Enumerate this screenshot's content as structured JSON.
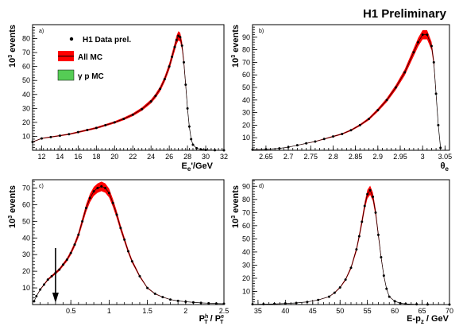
{
  "header": {
    "title": "H1 Preliminary"
  },
  "legend": {
    "data": "H1 Data prel.",
    "allmc": "All MC",
    "gpmc": "γ p MC",
    "colors": {
      "allmc": "#ff0000",
      "gpmc": "#55cc55",
      "data": "#000000"
    }
  },
  "chart_data": [
    {
      "type": "line",
      "panel": "a)",
      "xlabel": "E_e'/GeV",
      "ylabel": "10^3 events",
      "xlim": [
        11,
        32
      ],
      "ylim": [
        0,
        90
      ],
      "xticks": [
        12,
        14,
        16,
        18,
        20,
        22,
        24,
        26,
        28,
        30,
        32
      ],
      "yticks": [
        10,
        20,
        30,
        40,
        50,
        60,
        70,
        80
      ],
      "x": [
        11,
        12,
        13,
        14,
        15,
        16,
        17,
        18,
        19,
        20,
        21,
        22,
        23,
        24,
        24.5,
        25,
        25.5,
        26,
        26.3,
        26.6,
        26.8,
        27,
        27.2,
        27.4,
        27.6,
        27.8,
        28,
        28.2,
        28.4,
        28.6,
        29,
        29.5,
        30,
        31,
        32
      ],
      "y": [
        6,
        8.5,
        9.5,
        10.5,
        11.5,
        13,
        14.5,
        16,
        18,
        20,
        22.5,
        25.5,
        29.5,
        35,
        39,
        44,
        51,
        60,
        67,
        74,
        79,
        82,
        81,
        75,
        63,
        47,
        30,
        17,
        8,
        4,
        1.5,
        0.6,
        0.3,
        0.1,
        0
      ]
    },
    {
      "type": "line",
      "panel": "b)",
      "xlabel": "θ_e",
      "ylabel": "10^3 events",
      "xlim": [
        2.62,
        3.06
      ],
      "ylim": [
        0,
        100
      ],
      "xticks": [
        2.65,
        2.7,
        2.75,
        2.8,
        2.85,
        2.9,
        2.95,
        3.0,
        3.05
      ],
      "xticklabels": [
        "2.65",
        "2.7",
        "2.75",
        "2.8",
        "2.85",
        "2.9",
        "2.95",
        "3",
        "3.05"
      ],
      "yticks": [
        10,
        20,
        30,
        40,
        50,
        60,
        70,
        80,
        90
      ],
      "x": [
        2.62,
        2.65,
        2.68,
        2.7,
        2.72,
        2.74,
        2.76,
        2.78,
        2.8,
        2.82,
        2.84,
        2.86,
        2.88,
        2.9,
        2.92,
        2.94,
        2.96,
        2.98,
        2.99,
        3.0,
        3.01,
        3.02,
        3.025,
        3.03,
        3.035,
        3.04
      ],
      "y": [
        0.5,
        0.8,
        1.5,
        2.5,
        4,
        5.5,
        7,
        9,
        11,
        13,
        16,
        20,
        25,
        32,
        40,
        50,
        62,
        78,
        86,
        92,
        92,
        83,
        70,
        45,
        20,
        2
      ]
    },
    {
      "type": "line",
      "panel": "c)",
      "xlabel": "P_T^h / P_T^e",
      "ylabel": "10^3 events",
      "xlim": [
        0,
        2.5
      ],
      "ylim": [
        0,
        75
      ],
      "xticks": [
        0.5,
        1,
        1.5,
        2,
        2.5
      ],
      "xticklabels": [
        "0.5",
        "1",
        "1.5",
        "2",
        "2.5"
      ],
      "yticks": [
        10,
        20,
        30,
        40,
        50,
        60,
        70
      ],
      "x": [
        0.02,
        0.05,
        0.1,
        0.15,
        0.2,
        0.25,
        0.3,
        0.35,
        0.4,
        0.45,
        0.5,
        0.55,
        0.6,
        0.65,
        0.7,
        0.75,
        0.8,
        0.85,
        0.9,
        0.95,
        1.0,
        1.05,
        1.1,
        1.15,
        1.2,
        1.25,
        1.3,
        1.4,
        1.5,
        1.6,
        1.7,
        1.8,
        1.9,
        2.0,
        2.1,
        2.2,
        2.3,
        2.4,
        2.5
      ],
      "y": [
        2,
        5,
        9,
        12,
        15,
        17,
        19,
        21,
        24,
        27,
        31,
        36,
        42,
        50,
        58,
        64,
        68,
        70,
        71,
        70,
        67,
        61,
        54,
        46,
        39,
        32,
        26,
        17,
        10,
        6.5,
        4.5,
        3,
        2.2,
        1.7,
        1.3,
        1,
        0.8,
        0.6,
        0.5
      ],
      "arrow_x": 0.3
    },
    {
      "type": "line",
      "panel": "d)",
      "xlabel": "E-p_z / GeV",
      "ylabel": "10^3 events",
      "xlim": [
        34,
        70
      ],
      "ylim": [
        0,
        95
      ],
      "xticks": [
        35,
        40,
        45,
        50,
        55,
        60,
        65,
        70
      ],
      "yticks": [
        10,
        20,
        30,
        40,
        50,
        60,
        70,
        80,
        90
      ],
      "x": [
        34,
        36,
        38,
        40,
        42,
        44,
        46,
        48,
        49,
        50,
        51,
        52,
        53,
        53.5,
        54,
        54.5,
        55,
        55.5,
        56,
        56.5,
        57,
        57.5,
        58,
        58.5,
        59,
        60,
        61,
        62,
        64,
        66,
        70
      ],
      "y": [
        0.2,
        0.3,
        0.5,
        0.8,
        1.2,
        2,
        3.5,
        6,
        9,
        13,
        19,
        28,
        42,
        52,
        63,
        75,
        84,
        87,
        82,
        70,
        53,
        36,
        22,
        12,
        6,
        2.5,
        1,
        0.5,
        0.2,
        0.1,
        0
      ]
    }
  ]
}
